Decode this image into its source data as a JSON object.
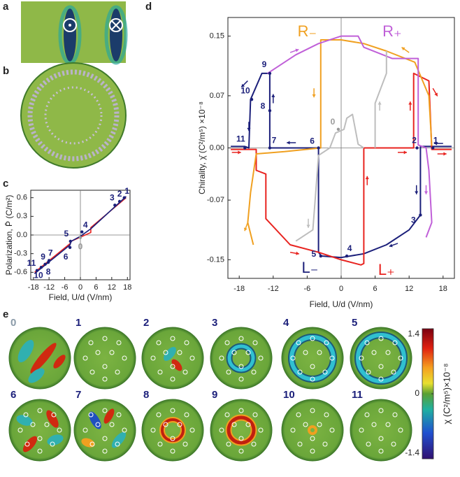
{
  "panel_labels": [
    "a",
    "b",
    "c",
    "d",
    "e"
  ],
  "chart_data": [
    {
      "type": "line",
      "xlabel": "Field, U/d (V/nm)",
      "ylabel": "Polarization, P̄ (C/m²)",
      "xlim": [
        -19,
        19
      ],
      "ylim": [
        -0.72,
        0.72
      ],
      "xticks": [
        -18,
        -12,
        -6,
        0,
        6,
        12,
        18
      ],
      "yticks": [
        -0.6,
        -0.3,
        {
          "value": 0,
          "label": "0.0"
        },
        0.3,
        0.6
      ],
      "series": [
        {
          "color": "#e8231f",
          "x": [
            -17.5,
            -4,
            -3.5,
            4,
            4,
            17.5
          ],
          "values": [
            -0.6,
            -0.14,
            -0.1,
            0.04,
            0.12,
            0.6
          ]
        },
        {
          "color": "#1b1f7a",
          "x": [
            -17.5,
            -4,
            -3.5,
            0,
            4,
            17.5
          ],
          "values": [
            -0.62,
            -0.16,
            -0.1,
            -0.02,
            0.1,
            0.62
          ]
        }
      ],
      "point_color": "#1b1f7a",
      "points": [
        {
          "label": "0",
          "x": 0,
          "y": -0.04,
          "color": "#9a9a9a"
        },
        {
          "label": "1",
          "x": 16.8,
          "y": 0.6
        },
        {
          "label": "2",
          "x": 15,
          "y": 0.54
        },
        {
          "label": "3",
          "x": 13.2,
          "y": 0.48
        },
        {
          "label": "4",
          "x": 0.6,
          "y": 0.05
        },
        {
          "label": "5",
          "x": -3.8,
          "y": -0.1
        },
        {
          "label": "6",
          "x": -4,
          "y": -0.2
        },
        {
          "label": "7",
          "x": -12,
          "y": -0.41
        },
        {
          "label": "8",
          "x": -12.3,
          "y": -0.44
        },
        {
          "label": "9",
          "x": -13.5,
          "y": -0.47
        },
        {
          "label": "10",
          "x": -15,
          "y": -0.52
        },
        {
          "label": "11",
          "x": -16.6,
          "y": -0.57
        }
      ]
    },
    {
      "type": "line",
      "xlabel": "Field, U/d (V/nm)",
      "ylabel": "Chirality, χ̄ (C²/m⁵) ×10⁻⁸",
      "xlim": [
        -20,
        20
      ],
      "ylim": [
        -0.175,
        0.175
      ],
      "xticks": [
        -18,
        -12,
        -6,
        0,
        6,
        12,
        18
      ],
      "yticks": [
        -0.15,
        -0.07,
        {
          "value": 0,
          "label": "0.00"
        },
        0.07,
        0.15
      ],
      "series": [
        {
          "color": "#1b1f7a",
          "x": [
            19.5,
            14,
            14,
            12,
            8,
            4,
            0,
            -3.5,
            -4,
            -4,
            -12.6,
            -12.6,
            -12.6,
            -12.6,
            -14,
            -16,
            -16.3,
            -17,
            -19.5
          ],
          "values": [
            0.002,
            0.002,
            -0.09,
            -0.11,
            -0.13,
            -0.142,
            -0.147,
            -0.145,
            -0.14,
            0.0,
            0.0,
            0.05,
            0.1,
            0.1,
            0.1,
            0.065,
            0.0,
            0.002,
            0.002
          ]
        },
        {
          "color": "#e8231f",
          "x": [
            -19.5,
            -15,
            -15,
            -13.3,
            -13.3,
            -9,
            -4,
            0,
            3.5,
            4,
            4,
            12.8,
            12.8,
            15.5,
            16,
            19.5
          ],
          "values": [
            -0.002,
            -0.002,
            -0.03,
            -0.035,
            -0.095,
            -0.13,
            -0.14,
            -0.15,
            -0.157,
            -0.155,
            0.0,
            0.0,
            0.1,
            0.09,
            -0.002,
            -0.002
          ]
        },
        {
          "color": "#f0a020",
          "x": [
            16,
            15.5,
            13,
            8,
            4,
            0,
            -3.6,
            -3.6,
            -10,
            -15,
            -16,
            -16.5,
            -15.5
          ],
          "values": [
            0.003,
            0.07,
            0.115,
            0.13,
            0.14,
            0.145,
            0.145,
            0.0,
            -0.005,
            -0.008,
            -0.06,
            -0.1,
            -0.13
          ]
        },
        {
          "color": "#c060d8",
          "x": [
            -13,
            -8,
            -4,
            0,
            3,
            4,
            9,
            13.6,
            13.6,
            15,
            15.5,
            16,
            15
          ],
          "values": [
            0.1,
            0.125,
            0.14,
            0.15,
            0.15,
            0.135,
            0.12,
            0.12,
            0.004,
            0.0,
            -0.03,
            -0.1,
            -0.12
          ]
        },
        {
          "color": "#bdbdbd",
          "x": [
            -8,
            -5,
            -4.5,
            -4,
            -2,
            -1,
            0.5,
            1,
            2,
            3,
            4,
            null,
            6,
            6,
            7,
            8,
            8
          ],
          "values": [
            -0.125,
            -0.11,
            -0.06,
            -0.01,
            0.0,
            0.02,
            0.025,
            0.04,
            0.045,
            0.005,
            0.0,
            null,
            0.0,
            0.06,
            0.08,
            0.1,
            0.13
          ]
        }
      ],
      "point_color": "#1b1f7a",
      "points": [
        {
          "label": "0",
          "x": -0.5,
          "y": 0.025,
          "color": "#9a9a9a"
        },
        {
          "label": "1",
          "x": 16.2,
          "y": 0.0
        },
        {
          "label": "2",
          "x": 13.4,
          "y": 0.0
        },
        {
          "label": "3",
          "x": 14,
          "y": -0.09
        },
        {
          "label": "4",
          "x": 1,
          "y": -0.145
        },
        {
          "label": "5",
          "x": -3.6,
          "y": -0.145
        },
        {
          "label": "6",
          "x": -4,
          "y": 0.0
        },
        {
          "label": "7",
          "x": -12.6,
          "y": 0.0
        },
        {
          "label": "8",
          "x": -12.6,
          "y": 0.05
        },
        {
          "label": "9",
          "x": -12.6,
          "y": 0.1
        },
        {
          "label": "10",
          "x": -15.8,
          "y": 0.065
        },
        {
          "label": "11",
          "x": -17,
          "y": 0.0
        }
      ],
      "annotations": [
        {
          "text": "R₋",
          "color": "#f0a020"
        },
        {
          "text": "R₊",
          "color": "#c060d8"
        },
        {
          "text": "L₋",
          "color": "#1b1f7a"
        },
        {
          "text": "L₊",
          "color": "#e8231f"
        }
      ]
    },
    {
      "type": "colorbar",
      "label": "χ (C²/m⁵)×10⁻⁸",
      "ylim": [
        -1.4,
        1.4
      ],
      "yticks": [
        -1.4,
        0,
        1.4
      ]
    }
  ],
  "snapshot_labels": [
    "0",
    "1",
    "2",
    "3",
    "4",
    "5",
    "6",
    "7",
    "8",
    "9",
    "10",
    "11"
  ]
}
